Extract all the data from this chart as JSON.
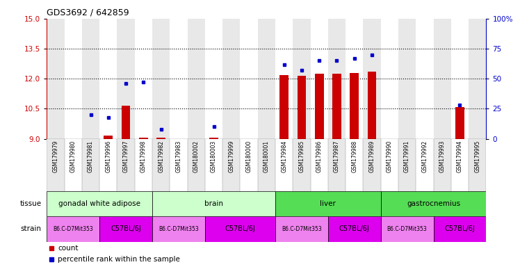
{
  "title": "GDS3692 / 642859",
  "samples": [
    "GSM179979",
    "GSM179980",
    "GSM179981",
    "GSM179996",
    "GSM179997",
    "GSM179998",
    "GSM179982",
    "GSM179983",
    "GSM180002",
    "GSM180003",
    "GSM179999",
    "GSM180000",
    "GSM180001",
    "GSM179984",
    "GSM179985",
    "GSM179986",
    "GSM179987",
    "GSM179988",
    "GSM179989",
    "GSM179990",
    "GSM179991",
    "GSM179992",
    "GSM179993",
    "GSM179994",
    "GSM179995"
  ],
  "count_values": [
    9.0,
    9.0,
    9.0,
    9.15,
    10.65,
    9.05,
    9.05,
    9.0,
    9.0,
    9.05,
    9.0,
    9.0,
    9.0,
    12.2,
    12.15,
    12.25,
    12.25,
    12.3,
    12.35,
    9.0,
    9.0,
    9.0,
    9.0,
    10.6,
    9.0
  ],
  "percentile_values": [
    null,
    null,
    20,
    18,
    46,
    47,
    8,
    null,
    null,
    10,
    null,
    null,
    null,
    62,
    57,
    65,
    65,
    67,
    70,
    null,
    null,
    null,
    null,
    28,
    null
  ],
  "ylim": [
    9,
    15
  ],
  "yticks": [
    9,
    10.5,
    12,
    13.5,
    15
  ],
  "y2lim": [
    0,
    100
  ],
  "y2ticks": [
    0,
    25,
    50,
    75,
    100
  ],
  "bar_color": "#CC0000",
  "dot_color": "#0000CC",
  "tissue_defs": [
    {
      "label": "gonadal white adipose",
      "start": 0,
      "end": 6,
      "color": "#ccffcc"
    },
    {
      "label": "brain",
      "start": 6,
      "end": 13,
      "color": "#ccffcc"
    },
    {
      "label": "liver",
      "start": 13,
      "end": 19,
      "color": "#55dd55"
    },
    {
      "label": "gastrocnemius",
      "start": 19,
      "end": 25,
      "color": "#55dd55"
    }
  ],
  "strain_defs": [
    {
      "label": "B6.C-D7Mit353",
      "start": 0,
      "end": 3,
      "color": "#ee82ee",
      "fontsize": 5.5
    },
    {
      "label": "C57BL/6J",
      "start": 3,
      "end": 6,
      "color": "#dd00ee",
      "fontsize": 7
    },
    {
      "label": "B6.C-D7Mit353",
      "start": 6,
      "end": 9,
      "color": "#ee82ee",
      "fontsize": 5.5
    },
    {
      "label": "C57BL/6J",
      "start": 9,
      "end": 13,
      "color": "#dd00ee",
      "fontsize": 7
    },
    {
      "label": "B6.C-D7Mit353",
      "start": 13,
      "end": 16,
      "color": "#ee82ee",
      "fontsize": 5.5
    },
    {
      "label": "C57BL/6J",
      "start": 16,
      "end": 19,
      "color": "#dd00ee",
      "fontsize": 7
    },
    {
      "label": "B6.C-D7Mit353",
      "start": 19,
      "end": 22,
      "color": "#ee82ee",
      "fontsize": 5.5
    },
    {
      "label": "C57BL/6J",
      "start": 22,
      "end": 25,
      "color": "#dd00ee",
      "fontsize": 7
    }
  ],
  "col_bg_even": "#e8e8e8",
  "col_bg_odd": "#ffffff"
}
